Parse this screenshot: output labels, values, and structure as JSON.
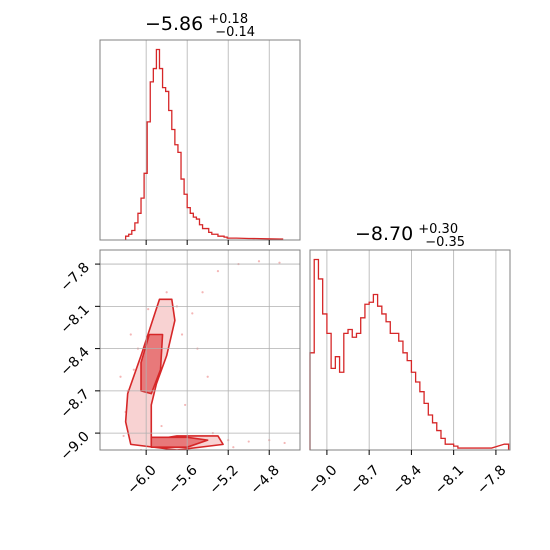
{
  "colors": {
    "accent": "#d62728",
    "grid": "#b0b0b0",
    "axes": "#808080",
    "fill_inner": "#e8797a",
    "fill_outer": "#f8d2d2",
    "scatter": "#f4b6b6"
  },
  "chart_data": [
    {
      "name": "hist-param-1",
      "type": "histogram",
      "title": {
        "median": "−5.86",
        "plus": "+0.18",
        "minus": "−0.14"
      },
      "xlim": [
        -6.45,
        -4.5
      ],
      "xticks": [
        -6.0,
        -5.6,
        -5.2,
        -4.8
      ],
      "grid": true,
      "bins": [
        [
          -6.2,
          2
        ],
        [
          -6.17,
          3
        ],
        [
          -6.14,
          5
        ],
        [
          -6.11,
          9
        ],
        [
          -6.08,
          14
        ],
        [
          -6.05,
          22
        ],
        [
          -6.02,
          35
        ],
        [
          -5.99,
          62
        ],
        [
          -5.96,
          83
        ],
        [
          -5.93,
          90
        ],
        [
          -5.9,
          100
        ],
        [
          -5.87,
          90
        ],
        [
          -5.84,
          80
        ],
        [
          -5.81,
          78
        ],
        [
          -5.78,
          68
        ],
        [
          -5.75,
          58
        ],
        [
          -5.72,
          50
        ],
        [
          -5.69,
          46
        ],
        [
          -5.66,
          32
        ],
        [
          -5.63,
          24
        ],
        [
          -5.6,
          17
        ],
        [
          -5.57,
          14
        ],
        [
          -5.54,
          12
        ],
        [
          -5.51,
          11
        ],
        [
          -5.48,
          8
        ],
        [
          -5.45,
          6
        ],
        [
          -5.42,
          6
        ],
        [
          -5.39,
          4
        ],
        [
          -5.36,
          3
        ],
        [
          -5.33,
          3
        ],
        [
          -5.3,
          2
        ],
        [
          -5.27,
          2
        ],
        [
          -5.24,
          1.5
        ],
        [
          -5.21,
          1
        ],
        [
          -5.18,
          1
        ],
        [
          -5.15,
          1
        ],
        [
          -5.0,
          0.8
        ],
        [
          -4.7,
          0.5
        ]
      ],
      "bin_width": 0.03
    },
    {
      "name": "hist-param-2",
      "type": "histogram",
      "title": {
        "median": "−8.70",
        "plus": "+0.30",
        "minus": "−0.35"
      },
      "xlim": [
        -9.12,
        -7.7
      ],
      "xticks": [
        -9.0,
        -8.7,
        -8.4,
        -8.1,
        -7.8
      ],
      "grid": true,
      "bins": [
        [
          -9.12,
          50
        ],
        [
          -9.09,
          98
        ],
        [
          -9.06,
          88
        ],
        [
          -9.03,
          70
        ],
        [
          -9.0,
          60
        ],
        [
          -8.97,
          42
        ],
        [
          -8.94,
          48
        ],
        [
          -8.91,
          40
        ],
        [
          -8.88,
          60
        ],
        [
          -8.85,
          62
        ],
        [
          -8.82,
          58
        ],
        [
          -8.79,
          60
        ],
        [
          -8.76,
          68
        ],
        [
          -8.73,
          75
        ],
        [
          -8.7,
          76
        ],
        [
          -8.67,
          80
        ],
        [
          -8.64,
          74
        ],
        [
          -8.61,
          70
        ],
        [
          -8.58,
          66
        ],
        [
          -8.55,
          60
        ],
        [
          -8.52,
          60
        ],
        [
          -8.49,
          56
        ],
        [
          -8.46,
          50
        ],
        [
          -8.43,
          46
        ],
        [
          -8.4,
          40
        ],
        [
          -8.37,
          35
        ],
        [
          -8.34,
          30
        ],
        [
          -8.31,
          24
        ],
        [
          -8.28,
          18
        ],
        [
          -8.25,
          14
        ],
        [
          -8.22,
          10
        ],
        [
          -8.19,
          6
        ],
        [
          -8.16,
          3
        ],
        [
          -8.13,
          3
        ],
        [
          -8.1,
          2
        ],
        [
          -8.07,
          1
        ],
        [
          -8.04,
          1
        ],
        [
          -7.98,
          1
        ],
        [
          -7.92,
          1
        ],
        [
          -7.86,
          1
        ],
        [
          -7.74,
          3
        ]
      ],
      "bin_width": 0.03
    },
    {
      "name": "contour-2d",
      "type": "scatter",
      "xlim": [
        -6.45,
        -4.5
      ],
      "ylim": [
        -9.12,
        -7.7
      ],
      "xticks": [
        -6.0,
        -5.6,
        -5.2,
        -4.8
      ],
      "yticks": [
        -7.8,
        -8.1,
        -8.4,
        -8.7,
        -9.0
      ],
      "grid": true,
      "levels": [
        {
          "fill": "outer",
          "polygons": [
            [
              [
                -5.87,
                -8.05
              ],
              [
                -5.75,
                -8.05
              ],
              [
                -5.72,
                -8.2
              ],
              [
                -5.8,
                -8.45
              ],
              [
                -5.9,
                -8.65
              ],
              [
                -5.95,
                -8.8
              ],
              [
                -5.95,
                -9.05
              ],
              [
                -5.7,
                -9.02
              ],
              [
                -5.3,
                -9.02
              ],
              [
                -5.25,
                -9.08
              ],
              [
                -5.7,
                -9.12
              ],
              [
                -6.15,
                -9.08
              ],
              [
                -6.2,
                -8.92
              ],
              [
                -6.18,
                -8.72
              ],
              [
                -6.05,
                -8.45
              ],
              [
                -5.96,
                -8.25
              ],
              [
                -5.87,
                -8.05
              ]
            ]
          ]
        },
        {
          "fill": "inner",
          "polygons": [
            [
              [
                -5.97,
                -8.3
              ],
              [
                -5.84,
                -8.3
              ],
              [
                -5.86,
                -8.55
              ],
              [
                -5.95,
                -8.72
              ],
              [
                -6.05,
                -8.7
              ],
              [
                -6.05,
                -8.5
              ],
              [
                -5.97,
                -8.3
              ]
            ],
            [
              [
                -5.95,
                -9.03
              ],
              [
                -5.6,
                -9.03
              ],
              [
                -5.4,
                -9.05
              ],
              [
                -5.6,
                -9.1
              ],
              [
                -5.95,
                -9.1
              ],
              [
                -5.95,
                -9.03
              ]
            ]
          ]
        }
      ],
      "points": [
        [
          -6.12,
          -8.55
        ],
        [
          -6.18,
          -8.7
        ],
        [
          -6.2,
          -8.85
        ],
        [
          -6.1,
          -8.95
        ],
        [
          -6.22,
          -9.02
        ],
        [
          -5.8,
          -8.0
        ],
        [
          -5.7,
          -8.1
        ],
        [
          -5.9,
          -8.2
        ],
        [
          -6.08,
          -8.4
        ],
        [
          -5.65,
          -8.3
        ],
        [
          -5.55,
          -8.15
        ],
        [
          -5.45,
          -8.0
        ],
        [
          -5.3,
          -7.85
        ],
        [
          -5.1,
          -7.8
        ],
        [
          -4.9,
          -7.78
        ],
        [
          -4.7,
          -7.79
        ],
        [
          -5.2,
          -9.05
        ],
        [
          -5.0,
          -9.06
        ],
        [
          -4.8,
          -9.05
        ],
        [
          -4.65,
          -9.07
        ],
        [
          -6.25,
          -8.6
        ],
        [
          -6.15,
          -8.3
        ],
        [
          -5.98,
          -8.12
        ],
        [
          -5.5,
          -8.4
        ],
        [
          -5.4,
          -8.6
        ],
        [
          -5.35,
          -9.0
        ],
        [
          -5.15,
          -9.1
        ],
        [
          -6.05,
          -9.12
        ],
        [
          -5.85,
          -8.95
        ],
        [
          -5.62,
          -8.8
        ]
      ]
    }
  ]
}
